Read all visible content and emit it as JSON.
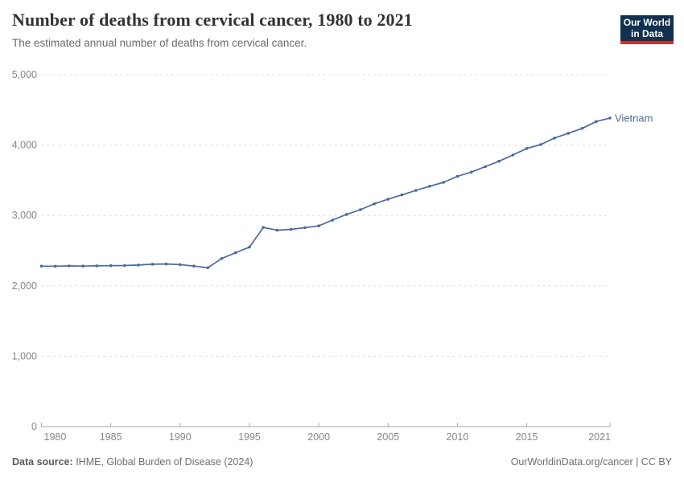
{
  "header": {
    "title": "Number of deaths from cervical cancer, 1980 to 2021",
    "subtitle": "The estimated annual number of deaths from cervical cancer.",
    "logo": {
      "line1": "Our World",
      "line2": "in Data",
      "bg_color": "#12304f",
      "accent_color": "#c5352c"
    }
  },
  "chart_data": {
    "type": "line",
    "title": "Number of deaths from cervical cancer, 1980 to 2021",
    "xlabel": "",
    "ylabel": "",
    "xlim": [
      1980,
      2021
    ],
    "ylim": [
      0,
      5000
    ],
    "grid": "horizontal-dashed",
    "legend_position": "end-of-line-label",
    "x_ticks": [
      1980,
      1985,
      1990,
      1995,
      2000,
      2005,
      2010,
      2015,
      2021
    ],
    "y_ticks": [
      0,
      1000,
      2000,
      3000,
      4000,
      5000
    ],
    "y_tick_labels": [
      "0",
      "1,000",
      "2,000",
      "3,000",
      "4,000",
      "5,000"
    ],
    "series": [
      {
        "name": "Vietnam",
        "color": "#4C6A9C",
        "x": [
          1980,
          1981,
          1982,
          1983,
          1984,
          1985,
          1986,
          1987,
          1988,
          1989,
          1990,
          1991,
          1992,
          1993,
          1994,
          1995,
          1996,
          1997,
          1998,
          1999,
          2000,
          2001,
          2002,
          2003,
          2004,
          2005,
          2006,
          2007,
          2008,
          2009,
          2010,
          2011,
          2012,
          2013,
          2014,
          2015,
          2016,
          2017,
          2018,
          2019,
          2020,
          2021
        ],
        "values": [
          2280,
          2279,
          2283,
          2281,
          2284,
          2286,
          2289,
          2296,
          2307,
          2311,
          2301,
          2281,
          2257,
          2388,
          2470,
          2550,
          2830,
          2790,
          2802,
          2826,
          2852,
          2935,
          3015,
          3082,
          3166,
          3232,
          3292,
          3356,
          3415,
          3470,
          3556,
          3617,
          3693,
          3770,
          3860,
          3952,
          4007,
          4100,
          4168,
          4237,
          4335,
          4385
        ]
      }
    ],
    "style": {
      "grid_color": "#dcdcdc",
      "axis_color": "#a3a3a3",
      "tick_label_color": "#878787"
    }
  },
  "footer": {
    "source_label": "Data source:",
    "source_text": " IHME, Global Burden of Disease (2024)",
    "credit": "OurWorldinData.org/cancer | CC BY"
  }
}
